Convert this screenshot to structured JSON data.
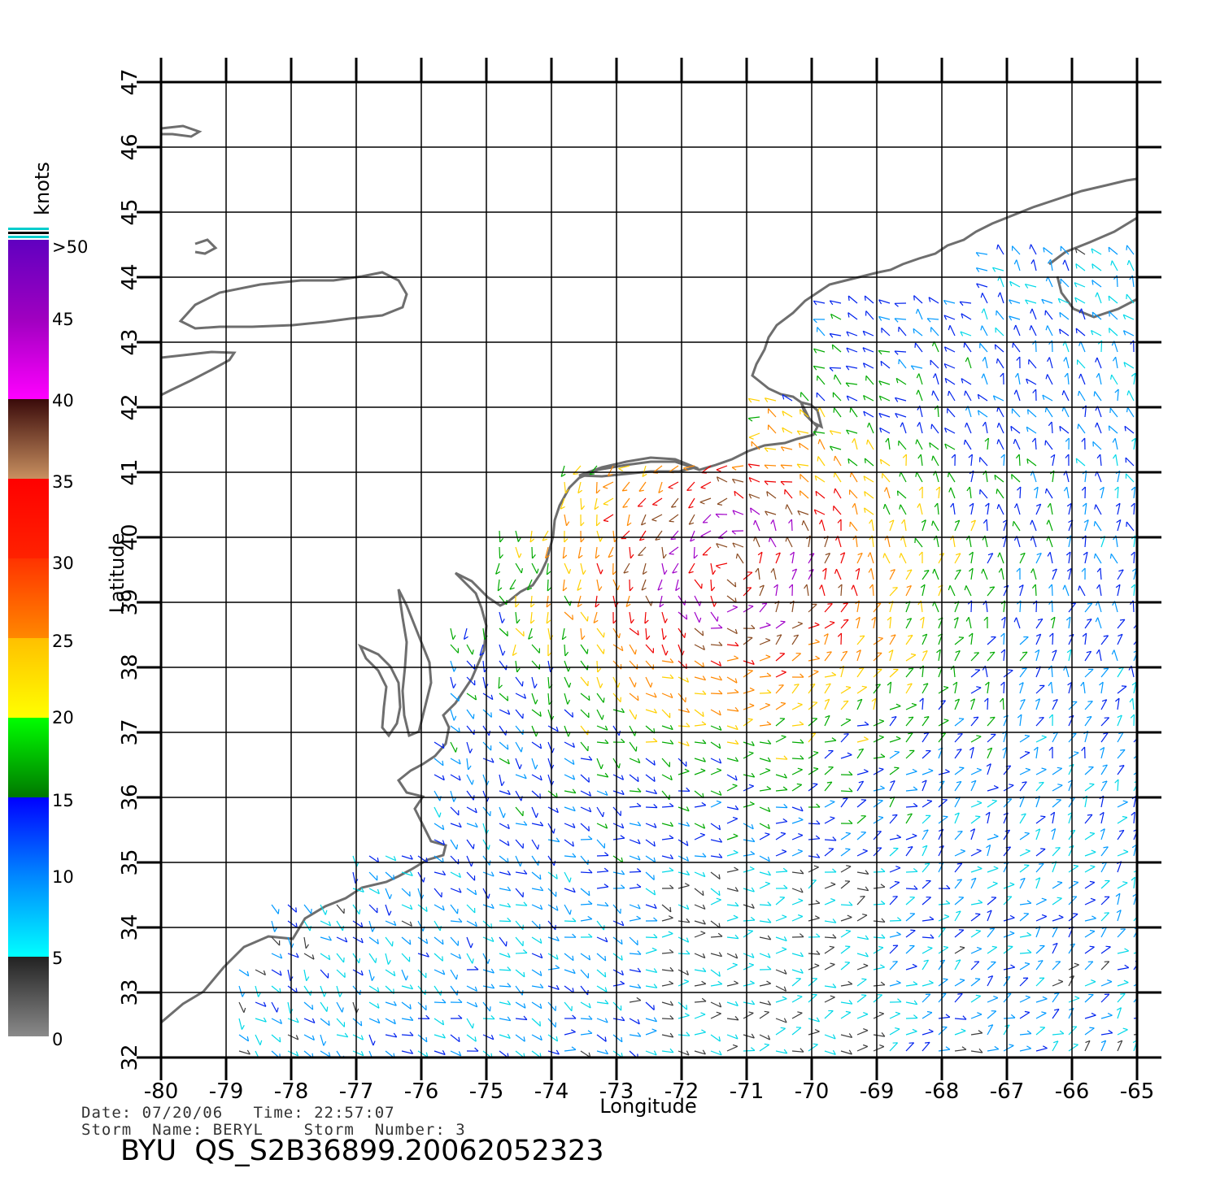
{
  "colors": {
    "land": "#6e6e6e",
    "grid": "#000000",
    "calm": "#555555"
  },
  "legend": {
    "unit": "knots",
    "labels": [
      ">50",
      "45",
      "40",
      "35",
      "30",
      "25",
      "20",
      "15",
      "10",
      "5",
      "0"
    ]
  },
  "axes": {
    "xlabel": "Longitude",
    "ylabel": "Latitude",
    "lon_ticks": [
      "-80",
      "-79",
      "-78",
      "-77",
      "-76",
      "-75",
      "-74",
      "-73",
      "-72",
      "-71",
      "-70",
      "-69",
      "-68",
      "-67",
      "-66",
      "-65"
    ],
    "lat_ticks": [
      "32",
      "33",
      "34",
      "35",
      "36",
      "37",
      "38",
      "39",
      "40",
      "41",
      "42",
      "43",
      "44",
      "45",
      "46",
      "47"
    ]
  },
  "footer": {
    "line1": "Date: 07/20/06   Time: 22:57:07",
    "line2": "Storm  Name: BERYL    Storm  Number: 3",
    "id": "BYU  QS_S2B36899.20062052323"
  },
  "chart_data": {
    "type": "wind vector map",
    "lon_range": [
      -80,
      -65
    ],
    "lat_range": [
      32,
      47
    ],
    "grid": true,
    "colorbar_units": "knots",
    "colorbar_range": [
      0,
      50
    ],
    "storm_center_approx": {
      "lon": -71.2,
      "lat": 39.5
    }
  }
}
